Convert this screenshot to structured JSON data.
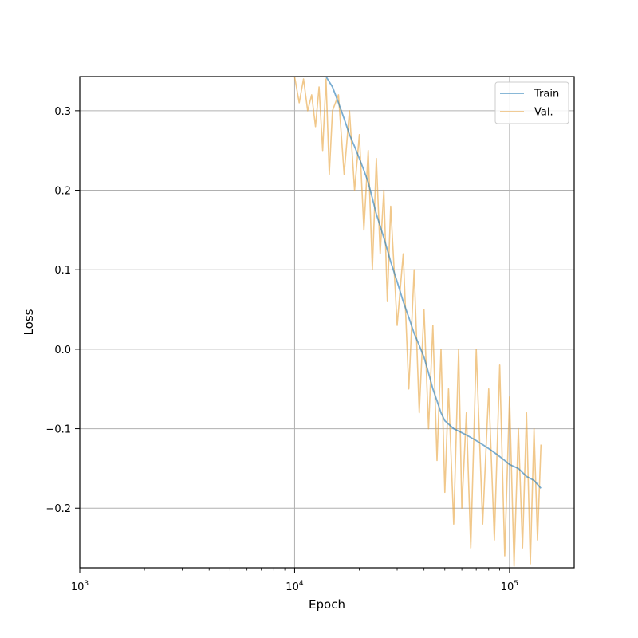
{
  "chart_data": {
    "type": "line",
    "title": "",
    "xlabel": "Epoch",
    "ylabel": "Loss",
    "xscale": "log",
    "xlim": [
      1000,
      200000
    ],
    "ylim": [
      -0.275,
      0.343
    ],
    "grid": true,
    "legend_position": "top-right",
    "x_ticks": [
      {
        "value": 1000,
        "base": "10",
        "exp": "3"
      },
      {
        "value": 10000,
        "base": "10",
        "exp": "4"
      },
      {
        "value": 100000,
        "base": "10",
        "exp": "5"
      }
    ],
    "y_ticks": [
      {
        "value": 0.3,
        "label": "0.3"
      },
      {
        "value": 0.2,
        "label": "0.2"
      },
      {
        "value": 0.1,
        "label": "0.1"
      },
      {
        "value": 0.0,
        "label": "0.0"
      },
      {
        "value": -0.1,
        "label": "−0.1"
      },
      {
        "value": -0.2,
        "label": "−0.2"
      }
    ],
    "series": [
      {
        "name": "Train",
        "color": "#1f77b4",
        "x": [
          14000,
          15000,
          16000,
          17000,
          18000,
          19000,
          20000,
          21000,
          22000,
          23000,
          24000,
          25000,
          26000,
          27000,
          28000,
          30000,
          32000,
          34000,
          36000,
          38000,
          40000,
          42000,
          44000,
          46000,
          48000,
          50000,
          55000,
          60000,
          65000,
          70000,
          75000,
          80000,
          85000,
          90000,
          95000,
          100000,
          110000,
          120000,
          130000,
          140000
        ],
        "y": [
          0.343,
          0.33,
          0.31,
          0.29,
          0.27,
          0.255,
          0.24,
          0.225,
          0.21,
          0.19,
          0.17,
          0.155,
          0.14,
          0.125,
          0.11,
          0.085,
          0.06,
          0.04,
          0.02,
          0.005,
          -0.01,
          -0.03,
          -0.05,
          -0.065,
          -0.08,
          -0.09,
          -0.1,
          -0.105,
          -0.11,
          -0.115,
          -0.12,
          -0.125,
          -0.13,
          -0.135,
          -0.14,
          -0.145,
          -0.15,
          -0.16,
          -0.165,
          -0.175
        ]
      },
      {
        "name": "Val.",
        "color": "#e8a33d",
        "x": [
          10000,
          10500,
          11000,
          11500,
          12000,
          12500,
          13000,
          13500,
          14000,
          14500,
          15000,
          16000,
          17000,
          18000,
          19000,
          20000,
          21000,
          22000,
          23000,
          24000,
          25000,
          26000,
          27000,
          28000,
          30000,
          32000,
          34000,
          36000,
          38000,
          40000,
          42000,
          44000,
          46000,
          48000,
          50000,
          52000,
          55000,
          58000,
          60000,
          63000,
          66000,
          70000,
          75000,
          80000,
          85000,
          90000,
          95000,
          100000,
          105000,
          110000,
          115000,
          120000,
          125000,
          130000,
          135000,
          140000
        ],
        "y": [
          0.343,
          0.31,
          0.34,
          0.3,
          0.32,
          0.28,
          0.33,
          0.25,
          0.34,
          0.22,
          0.3,
          0.32,
          0.22,
          0.3,
          0.2,
          0.27,
          0.15,
          0.25,
          0.1,
          0.24,
          0.12,
          0.2,
          0.06,
          0.18,
          0.03,
          0.12,
          -0.05,
          0.1,
          -0.08,
          0.05,
          -0.1,
          0.03,
          -0.14,
          0.0,
          -0.18,
          -0.05,
          -0.22,
          0.0,
          -0.2,
          -0.08,
          -0.25,
          0.0,
          -0.22,
          -0.05,
          -0.24,
          -0.02,
          -0.26,
          -0.06,
          -0.273,
          -0.1,
          -0.25,
          -0.08,
          -0.27,
          -0.1,
          -0.24,
          -0.12
        ]
      }
    ]
  }
}
